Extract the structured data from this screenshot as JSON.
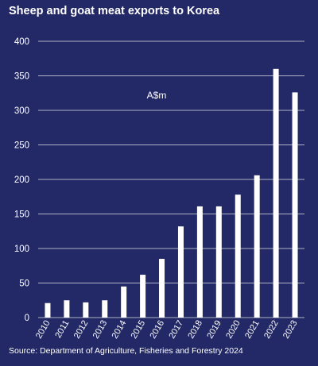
{
  "title": "Sheep and goat meat exports to Korea",
  "source": "Source: Department of Agriculture, Fisheries and Forestry 2024",
  "colors": {
    "background": "#232966",
    "bars": "#ffffff",
    "grid": "#ffffff"
  },
  "chart_data": {
    "type": "bar",
    "unit_label": "A$m",
    "categories": [
      "2010",
      "2011",
      "2012",
      "2013",
      "2014",
      "2015",
      "2016",
      "2017",
      "2018",
      "2019",
      "2020",
      "2021",
      "2022",
      "2023"
    ],
    "values": [
      21,
      25,
      22,
      25,
      45,
      62,
      85,
      132,
      161,
      161,
      178,
      206,
      360,
      326
    ],
    "ylim": [
      0,
      400
    ],
    "yticks": [
      0,
      50,
      100,
      150,
      200,
      250,
      300,
      350,
      400
    ],
    "grid": true,
    "xlabel": "",
    "ylabel": ""
  }
}
